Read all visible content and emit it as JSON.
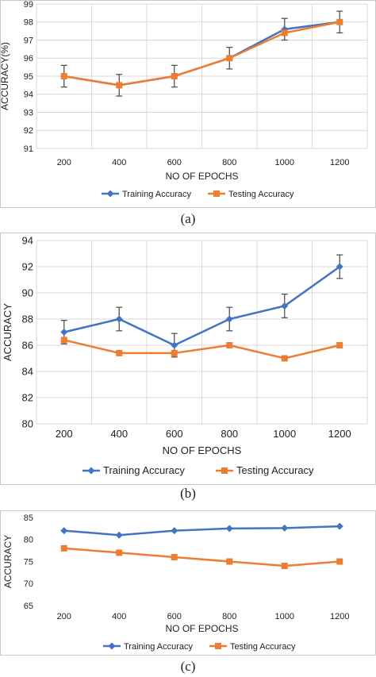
{
  "chart_data": [
    {
      "id": "a",
      "type": "line",
      "caption": "(a)",
      "xlabel": "NO OF EPOCHS",
      "ylabel": "ACCURACY(%)",
      "categories": [
        "200",
        "400",
        "600",
        "800",
        "1000",
        "1200"
      ],
      "ylim": [
        91,
        99
      ],
      "yticks": [
        91,
        92,
        93,
        94,
        95,
        96,
        97,
        98,
        99
      ],
      "grid": true,
      "legend": "bottom",
      "series": [
        {
          "name": "Training Accuracy",
          "color": "#4472c4",
          "marker": "diamond",
          "values": [
            95.0,
            94.5,
            95.0,
            96.0,
            97.6,
            98.0
          ],
          "error": [
            0.6,
            0.6,
            0.6,
            0.6,
            0.6,
            0.6
          ]
        },
        {
          "name": "Testing Accuracy",
          "color": "#ed7d31",
          "marker": "square",
          "values": [
            95.0,
            94.5,
            95.0,
            96.0,
            97.4,
            98.0
          ]
        }
      ]
    },
    {
      "id": "b",
      "type": "line",
      "caption": "(b)",
      "xlabel": "NO OF EPOCHS",
      "ylabel": "ACCURACY",
      "categories": [
        "200",
        "400",
        "600",
        "800",
        "1000",
        "1200"
      ],
      "ylim": [
        80,
        94
      ],
      "yticks": [
        80,
        82,
        84,
        86,
        88,
        90,
        92,
        94
      ],
      "grid": true,
      "legend": "bottom",
      "series": [
        {
          "name": "Training Accuracy",
          "color": "#4472c4",
          "marker": "diamond",
          "values": [
            87.0,
            88.0,
            86.0,
            88.0,
            89.0,
            92.0
          ],
          "error": [
            0.9,
            0.9,
            0.9,
            0.9,
            0.9,
            0.9
          ]
        },
        {
          "name": "Testing Accuracy",
          "color": "#ed7d31",
          "marker": "square",
          "values": [
            86.4,
            85.4,
            85.4,
            86.0,
            85.0,
            86.0
          ]
        }
      ]
    },
    {
      "id": "c",
      "type": "line",
      "caption": "(c)",
      "xlabel": "NO OF EPOCHS",
      "ylabel": "ACCURACY",
      "categories": [
        "200",
        "400",
        "600",
        "800",
        "1000",
        "1200"
      ],
      "ylim": [
        65,
        85
      ],
      "yticks": [
        65,
        70,
        75,
        80,
        85
      ],
      "grid": false,
      "legend": "bottom",
      "series": [
        {
          "name": "Training Accuracy",
          "color": "#4472c4",
          "marker": "diamond",
          "values": [
            82.0,
            81.0,
            82.0,
            82.5,
            82.6,
            83.0
          ]
        },
        {
          "name": "Testing Accuracy",
          "color": "#ed7d31",
          "marker": "square",
          "values": [
            78.0,
            77.0,
            76.0,
            75.0,
            74.0,
            75.0
          ]
        }
      ]
    }
  ]
}
